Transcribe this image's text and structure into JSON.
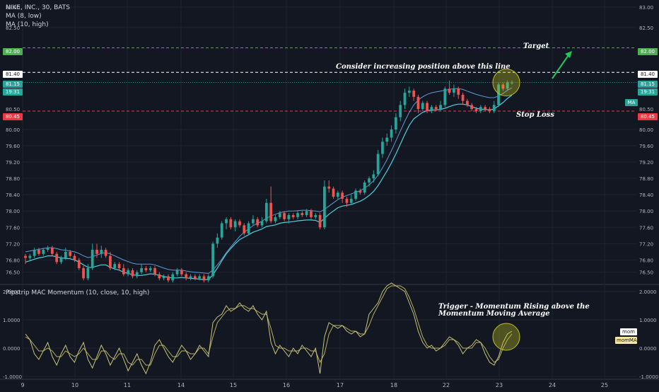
{
  "header": {
    "symbol_line": "NIKE, INC., 30, BATS",
    "ma1_label": "MA (8, low)",
    "ma2_label": "MA (10, high)",
    "osc_label": "Pipstrip MAC Momentum (10, close, 10, high)"
  },
  "annotations": {
    "target": "Target",
    "consider": "Consider increasing position above this line",
    "stop_loss": "Stop Loss",
    "trigger_line1": "Trigger - Momentum Rising above the",
    "trigger_line2": "Momentum Moving Average"
  },
  "price_tags": {
    "target": "82.00",
    "consider": "81.40",
    "last": "81.15",
    "countdown": "19:31",
    "stop_left": "80.45",
    "stop_right": "80.45",
    "right_last": "81.15",
    "right_countdown": "19:31",
    "ma_badge": "MA"
  },
  "osc_tags": {
    "mom": "mom",
    "mom_ma": "momMA"
  },
  "colors": {
    "up": "#26a69a",
    "down": "#ef5350",
    "ma_low": "#4dd0e1",
    "ma_high": "#5b9bd5",
    "target_line": "#4caf50",
    "stop_line": "#f23645",
    "consider_line": "#ffffff",
    "osc_line": "#c8c47a",
    "osc_ma": "#b8b060",
    "circle": "#c0c020"
  },
  "chart_data": {
    "type": "candlestick",
    "price_axis": {
      "ylim": [
        76.2,
        83.0
      ],
      "ticks": [
        "83.00",
        "82.50",
        "82.00",
        "81.40",
        "81.15",
        "80.50",
        "80.45",
        "80.00",
        "79.60",
        "79.20",
        "78.80",
        "78.40",
        "78.00",
        "77.60",
        "77.20",
        "76.80",
        "76.50"
      ]
    },
    "osc_axis": {
      "ylim": [
        -1.1,
        2.2
      ],
      "ticks": [
        "2.0000",
        "1.0000",
        "0.0000",
        "-1.0000"
      ]
    },
    "x_axis": {
      "ticks": [
        "9",
        "10",
        "11",
        "14",
        "15",
        "16",
        "17",
        "18",
        "22",
        "23",
        "24",
        "25"
      ]
    },
    "levels": {
      "target": 82.0,
      "consider": 81.4,
      "last": 81.15,
      "stop": 80.45
    },
    "candles": [
      [
        76.9,
        76.85,
        76.7,
        76.95
      ],
      [
        76.85,
        76.9,
        76.8,
        76.95
      ],
      [
        76.9,
        77.05,
        76.85,
        77.1
      ],
      [
        77.05,
        76.95,
        76.9,
        77.1
      ],
      [
        76.95,
        77.05,
        76.9,
        77.1
      ],
      [
        77.05,
        77.1,
        77.0,
        77.15
      ],
      [
        77.1,
        76.95,
        76.9,
        77.15
      ],
      [
        76.95,
        76.75,
        76.7,
        77.0
      ],
      [
        76.75,
        76.85,
        76.7,
        76.9
      ],
      [
        76.85,
        77.0,
        76.8,
        77.1
      ],
      [
        77.0,
        76.9,
        76.85,
        77.05
      ],
      [
        76.9,
        76.8,
        76.75,
        76.95
      ],
      [
        76.8,
        76.6,
        76.55,
        76.85
      ],
      [
        76.6,
        76.35,
        76.3,
        76.65
      ],
      [
        76.35,
        76.6,
        76.3,
        76.7
      ],
      [
        76.6,
        77.05,
        76.55,
        77.2
      ],
      [
        77.05,
        76.95,
        76.85,
        77.2
      ],
      [
        76.95,
        77.05,
        76.85,
        77.15
      ],
      [
        77.05,
        76.9,
        76.85,
        77.1
      ],
      [
        76.9,
        76.6,
        76.55,
        77.0
      ],
      [
        76.6,
        76.7,
        76.55,
        76.75
      ],
      [
        76.7,
        76.6,
        76.55,
        76.75
      ],
      [
        76.6,
        76.45,
        76.4,
        76.7
      ],
      [
        76.45,
        76.55,
        76.4,
        76.6
      ],
      [
        76.55,
        76.4,
        76.35,
        76.6
      ],
      [
        76.4,
        76.5,
        76.35,
        76.55
      ],
      [
        76.5,
        76.6,
        76.45,
        76.7
      ],
      [
        76.6,
        76.55,
        76.5,
        76.65
      ],
      [
        76.55,
        76.6,
        76.5,
        76.65
      ],
      [
        76.6,
        76.45,
        76.4,
        76.65
      ],
      [
        76.45,
        76.35,
        76.3,
        76.5
      ],
      [
        76.35,
        76.4,
        76.3,
        76.45
      ],
      [
        76.4,
        76.3,
        76.25,
        76.45
      ],
      [
        76.3,
        76.45,
        76.25,
        76.5
      ],
      [
        76.45,
        76.55,
        76.4,
        76.6
      ],
      [
        76.55,
        76.45,
        76.4,
        76.6
      ],
      [
        76.45,
        76.35,
        76.3,
        76.5
      ],
      [
        76.35,
        76.4,
        76.3,
        76.45
      ],
      [
        76.4,
        76.35,
        76.3,
        76.45
      ],
      [
        76.35,
        76.4,
        76.3,
        76.45
      ],
      [
        76.4,
        76.3,
        76.25,
        76.45
      ],
      [
        76.3,
        76.4,
        76.25,
        76.45
      ],
      [
        76.4,
        77.2,
        76.35,
        77.25
      ],
      [
        77.2,
        77.35,
        77.1,
        77.45
      ],
      [
        77.35,
        77.7,
        77.3,
        77.75
      ],
      [
        77.7,
        77.8,
        77.55,
        77.85
      ],
      [
        77.8,
        77.6,
        77.55,
        77.85
      ],
      [
        77.6,
        77.75,
        77.5,
        77.8
      ],
      [
        77.75,
        77.65,
        77.6,
        77.8
      ],
      [
        77.65,
        77.45,
        77.4,
        77.7
      ],
      [
        77.45,
        77.7,
        77.4,
        77.75
      ],
      [
        77.7,
        77.8,
        77.65,
        77.9
      ],
      [
        77.8,
        77.65,
        77.6,
        77.85
      ],
      [
        77.65,
        77.75,
        77.6,
        77.85
      ],
      [
        77.75,
        78.2,
        77.7,
        78.3
      ],
      [
        78.2,
        77.75,
        77.7,
        78.6
      ],
      [
        77.75,
        77.85,
        77.7,
        77.9
      ],
      [
        77.85,
        77.95,
        77.8,
        78.0
      ],
      [
        77.95,
        77.8,
        77.75,
        78.0
      ],
      [
        77.8,
        77.9,
        77.7,
        77.95
      ],
      [
        77.9,
        77.85,
        77.8,
        77.95
      ],
      [
        77.85,
        77.95,
        77.8,
        78.0
      ],
      [
        77.95,
        77.9,
        77.85,
        78.0
      ],
      [
        77.9,
        78.0,
        77.85,
        78.05
      ],
      [
        78.0,
        77.85,
        77.8,
        78.05
      ],
      [
        77.85,
        77.9,
        77.8,
        77.95
      ],
      [
        77.9,
        77.6,
        77.55,
        77.95
      ],
      [
        77.6,
        78.6,
        77.55,
        78.75
      ],
      [
        78.6,
        78.55,
        78.45,
        78.75
      ],
      [
        78.55,
        78.35,
        78.3,
        78.6
      ],
      [
        78.35,
        78.45,
        78.3,
        78.5
      ],
      [
        78.45,
        78.3,
        78.2,
        78.5
      ],
      [
        78.3,
        78.2,
        78.1,
        78.35
      ],
      [
        78.2,
        78.3,
        78.15,
        78.4
      ],
      [
        78.3,
        78.5,
        78.25,
        78.55
      ],
      [
        78.5,
        78.45,
        78.4,
        78.55
      ],
      [
        78.45,
        78.7,
        78.4,
        78.75
      ],
      [
        78.7,
        78.8,
        78.6,
        78.85
      ],
      [
        78.8,
        78.9,
        78.7,
        79.0
      ],
      [
        78.9,
        79.4,
        78.85,
        79.5
      ],
      [
        79.4,
        79.7,
        79.3,
        79.8
      ],
      [
        79.7,
        79.8,
        79.6,
        79.9
      ],
      [
        79.8,
        80.0,
        79.7,
        80.1
      ],
      [
        80.0,
        80.3,
        79.9,
        80.4
      ],
      [
        80.3,
        80.6,
        80.2,
        80.7
      ],
      [
        80.6,
        80.9,
        80.5,
        81.0
      ],
      [
        80.9,
        80.95,
        80.8,
        81.05
      ],
      [
        80.95,
        80.8,
        80.7,
        81.0
      ],
      [
        80.8,
        80.5,
        80.4,
        80.85
      ],
      [
        80.5,
        80.65,
        80.45,
        80.7
      ],
      [
        80.65,
        80.45,
        80.4,
        80.7
      ],
      [
        80.45,
        80.55,
        80.4,
        80.6
      ],
      [
        80.55,
        80.5,
        80.45,
        80.6
      ],
      [
        80.5,
        80.6,
        80.45,
        80.7
      ],
      [
        80.6,
        81.0,
        80.55,
        81.05
      ],
      [
        81.0,
        80.9,
        80.85,
        81.2
      ],
      [
        80.9,
        81.0,
        80.8,
        81.1
      ],
      [
        81.0,
        80.85,
        80.75,
        81.05
      ],
      [
        80.85,
        80.7,
        80.6,
        80.9
      ],
      [
        80.7,
        80.6,
        80.55,
        80.75
      ],
      [
        80.6,
        80.5,
        80.45,
        80.65
      ],
      [
        80.5,
        80.45,
        80.4,
        80.55
      ],
      [
        80.45,
        80.55,
        80.4,
        80.6
      ],
      [
        80.55,
        80.5,
        80.45,
        80.6
      ],
      [
        80.5,
        80.45,
        80.4,
        80.55
      ],
      [
        80.45,
        80.6,
        80.4,
        80.7
      ],
      [
        80.6,
        81.1,
        80.55,
        81.15
      ],
      [
        81.1,
        81.0,
        80.95,
        81.15
      ],
      [
        81.0,
        81.15,
        80.95,
        81.2
      ],
      [
        81.15,
        81.15,
        81.1,
        81.2
      ]
    ],
    "ma_low": [
      76.75,
      76.78,
      76.82,
      76.85,
      76.87,
      76.9,
      76.9,
      76.88,
      76.85,
      76.84,
      76.83,
      76.8,
      76.75,
      76.68,
      76.62,
      76.62,
      76.65,
      76.68,
      76.68,
      76.62,
      76.58,
      76.55,
      76.5,
      76.47,
      76.44,
      76.42,
      76.42,
      76.44,
      76.46,
      76.45,
      76.42,
      76.4,
      76.37,
      76.36,
      76.36,
      76.37,
      76.36,
      76.35,
      76.34,
      76.33,
      76.32,
      76.32,
      76.44,
      76.6,
      76.78,
      76.95,
      77.08,
      77.2,
      77.3,
      77.36,
      77.42,
      77.48,
      77.52,
      77.56,
      77.62,
      77.64,
      77.66,
      77.7,
      77.72,
      77.73,
      77.74,
      77.76,
      77.77,
      77.78,
      77.78,
      77.77,
      77.72,
      77.82,
      77.92,
      78.0,
      78.08,
      78.12,
      78.14,
      78.16,
      78.2,
      78.24,
      78.3,
      78.38,
      78.48,
      78.62,
      78.8,
      78.98,
      79.18,
      79.4,
      79.64,
      79.88,
      80.1,
      80.26,
      80.34,
      80.42,
      80.46,
      80.48,
      80.48,
      80.49,
      80.52,
      80.56,
      80.6,
      80.62,
      80.62,
      80.6,
      80.56,
      80.52,
      80.5,
      80.49,
      80.48,
      80.5,
      80.58,
      80.66,
      80.76,
      80.84
    ],
    "ma_high": [
      77.0,
      77.02,
      77.04,
      77.06,
      77.08,
      77.1,
      77.1,
      77.08,
      77.05,
      77.04,
      77.02,
      77.0,
      76.96,
      76.9,
      76.86,
      76.88,
      76.92,
      76.96,
      76.98,
      76.95,
      76.9,
      76.85,
      76.8,
      76.76,
      76.72,
      76.7,
      76.7,
      76.7,
      76.7,
      76.68,
      76.64,
      76.6,
      76.57,
      76.55,
      76.55,
      76.55,
      76.53,
      76.51,
      76.5,
      76.49,
      76.48,
      76.47,
      76.55,
      76.68,
      76.82,
      76.98,
      77.12,
      77.25,
      77.38,
      77.48,
      77.56,
      77.64,
      77.7,
      77.75,
      77.82,
      77.88,
      77.92,
      77.96,
      77.98,
      78.0,
      78.0,
      78.01,
      78.02,
      78.02,
      78.01,
      78.0,
      77.98,
      78.04,
      78.12,
      78.2,
      78.28,
      78.34,
      78.38,
      78.42,
      78.46,
      78.5,
      78.56,
      78.64,
      78.74,
      78.88,
      79.06,
      79.26,
      79.48,
      79.72,
      79.96,
      80.2,
      80.42,
      80.6,
      80.72,
      80.8,
      80.86,
      80.9,
      80.92,
      80.94,
      80.96,
      80.98,
      81.0,
      81.0,
      80.98,
      80.94,
      80.9,
      80.86,
      80.83,
      80.8,
      80.78,
      80.78,
      80.82,
      80.88,
      80.96,
      81.02
    ],
    "mom": [
      0.5,
      0.3,
      -0.2,
      -0.4,
      -0.1,
      0.2,
      -0.3,
      -0.6,
      -0.2,
      0.1,
      -0.3,
      -0.5,
      -0.1,
      0.2,
      -0.4,
      -0.7,
      -0.3,
      0.1,
      -0.2,
      -0.6,
      -0.3,
      0.0,
      -0.4,
      -0.8,
      -0.5,
      -0.2,
      -0.6,
      -0.9,
      -0.5,
      0.1,
      0.3,
      0.0,
      -0.3,
      -0.5,
      -0.2,
      0.1,
      -0.1,
      -0.4,
      -0.2,
      0.1,
      -0.1,
      -0.3,
      0.9,
      1.1,
      1.2,
      1.5,
      1.3,
      1.4,
      1.6,
      1.4,
      1.3,
      1.5,
      1.2,
      1.0,
      1.3,
      0.2,
      -0.2,
      0.1,
      -0.1,
      -0.3,
      0.0,
      -0.2,
      0.1,
      -0.1,
      -0.3,
      0.0,
      -0.9,
      0.4,
      0.9,
      0.8,
      0.7,
      0.8,
      0.6,
      0.5,
      0.6,
      0.4,
      0.5,
      1.2,
      1.4,
      1.6,
      2.0,
      2.2,
      2.3,
      2.2,
      2.1,
      2.0,
      1.6,
      1.2,
      0.6,
      0.2,
      0.0,
      0.1,
      -0.1,
      0.0,
      0.2,
      0.4,
      0.3,
      0.1,
      -0.2,
      0.0,
      0.1,
      0.3,
      0.2,
      -0.2,
      -0.5,
      -0.6,
      -0.3,
      0.2,
      0.5,
      0.6
    ],
    "mom_ma": [
      0.4,
      0.3,
      0.1,
      -0.1,
      -0.1,
      0.0,
      -0.1,
      -0.3,
      -0.3,
      -0.1,
      -0.2,
      -0.3,
      -0.2,
      0.0,
      -0.2,
      -0.4,
      -0.4,
      -0.1,
      -0.1,
      -0.3,
      -0.4,
      -0.2,
      -0.2,
      -0.5,
      -0.6,
      -0.4,
      -0.4,
      -0.6,
      -0.6,
      -0.2,
      0.1,
      0.1,
      -0.1,
      -0.3,
      -0.3,
      -0.1,
      -0.1,
      -0.2,
      -0.2,
      0.0,
      0.0,
      -0.2,
      0.4,
      0.9,
      1.1,
      1.3,
      1.4,
      1.4,
      1.5,
      1.5,
      1.4,
      1.4,
      1.3,
      1.2,
      1.2,
      0.7,
      0.1,
      0.0,
      0.0,
      -0.1,
      -0.1,
      -0.1,
      0.0,
      0.0,
      -0.1,
      -0.1,
      -0.5,
      -0.2,
      0.5,
      0.8,
      0.8,
      0.8,
      0.7,
      0.6,
      0.6,
      0.5,
      0.5,
      0.8,
      1.2,
      1.5,
      1.8,
      2.1,
      2.2,
      2.2,
      2.2,
      2.1,
      1.8,
      1.4,
      0.9,
      0.4,
      0.1,
      0.0,
      0.0,
      0.0,
      0.1,
      0.3,
      0.3,
      0.2,
      0.0,
      0.0,
      0.0,
      0.2,
      0.2,
      0.0,
      -0.3,
      -0.5,
      -0.4,
      0.0,
      0.3,
      0.5
    ]
  }
}
